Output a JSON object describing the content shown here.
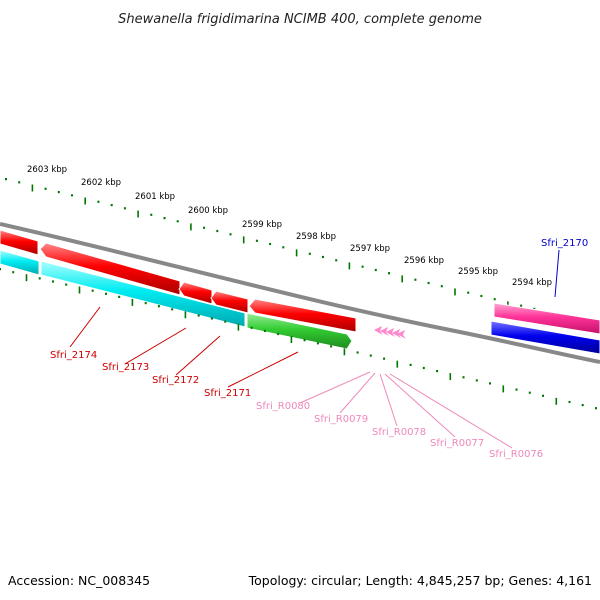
{
  "title": "Shewanella frigidimarina NCIMB 400, complete genome",
  "footer": {
    "accession": "Accession: NC_008345",
    "topology": "Topology: circular; Length: 4,845,257 bp; Genes: 4,161"
  },
  "scale_ticks": [
    "2603 kbp",
    "2602 kbp",
    "2601 kbp",
    "2600 kbp",
    "2599 kbp",
    "2598 kbp",
    "2597 kbp",
    "2596 kbp",
    "2595 kbp",
    "2594 kbp"
  ],
  "genes": [
    {
      "label": "Sfri_2174",
      "color": "#cc0000"
    },
    {
      "label": "Sfri_2173",
      "color": "#cc0000"
    },
    {
      "label": "Sfri_2172",
      "color": "#cc0000"
    },
    {
      "label": "Sfri_2171",
      "color": "#cc0000"
    },
    {
      "label": "Sfri_R0080",
      "color": "#ee88bb"
    },
    {
      "label": "Sfri_R0079",
      "color": "#ee88bb"
    },
    {
      "label": "Sfri_R0078",
      "color": "#ee88bb"
    },
    {
      "label": "Sfri_R0077",
      "color": "#ee88bb"
    },
    {
      "label": "Sfri_R0076",
      "color": "#ee88bb"
    },
    {
      "label": "Sfri_2170",
      "color": "#0000cc"
    }
  ],
  "colors": {
    "backbone": "#888888",
    "tick_green": "#007700",
    "forward_cds": "#ff0000",
    "reverse_cds": "#00e5ee",
    "green_cds": "#33cc33",
    "pink_trna": "#ff44aa",
    "blue_cds": "#0000ee"
  }
}
